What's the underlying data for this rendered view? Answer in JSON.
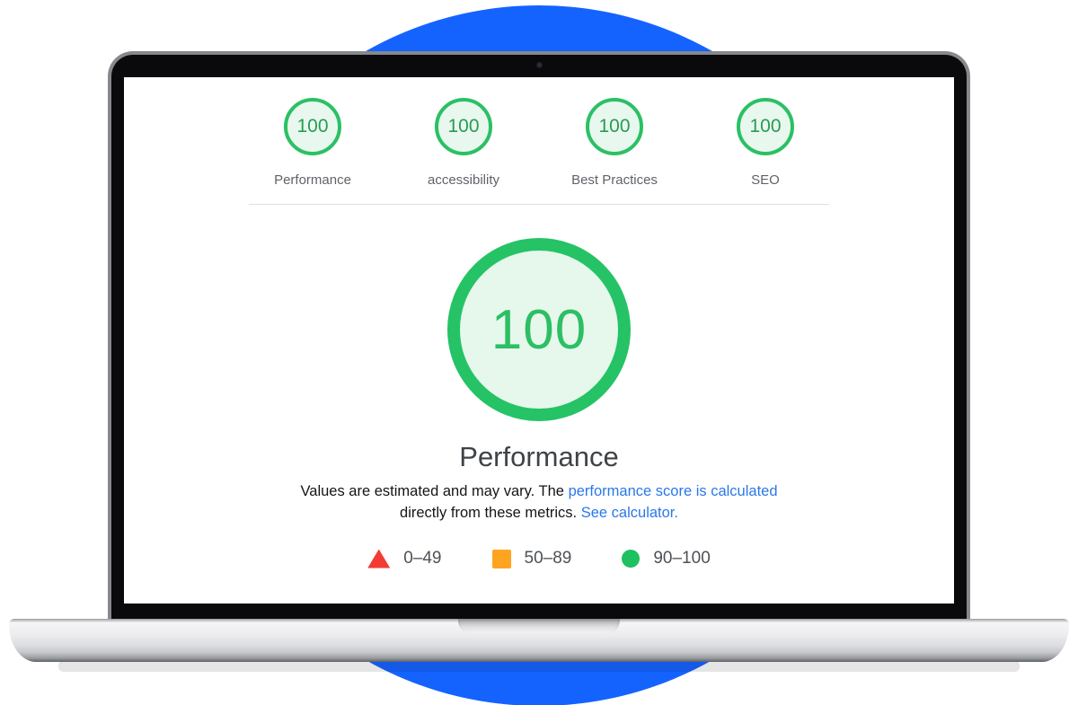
{
  "colors": {
    "background_circle_blue": "#1563ff",
    "score_ring_green": "#2bc065",
    "score_fill_light_green": "#e9f8ef",
    "score_text_green": "#279c52",
    "link_blue": "#2a78ea",
    "legend_fail_red": "#f23b35",
    "legend_average_orange": "#ffa421",
    "legend_pass_green": "#1fc05f"
  },
  "categories": [
    {
      "score": "100",
      "label": "Performance"
    },
    {
      "score": "100",
      "label": "accessibility"
    },
    {
      "score": "100",
      "label": "Best Practices"
    },
    {
      "score": "100",
      "label": "SEO"
    }
  ],
  "gauge": {
    "score": "100",
    "title": "Performance"
  },
  "description": {
    "text_1": "Values are estimated and may vary. The ",
    "link_1": "performance score is calculated",
    "text_2": " directly from these metrics. ",
    "link_2": "See calculator."
  },
  "legend": [
    {
      "range": "0–49",
      "shape": "triangle",
      "color": "#f23b35"
    },
    {
      "range": "50–89",
      "shape": "square",
      "color": "#ffa421"
    },
    {
      "range": "90–100",
      "shape": "circle",
      "color": "#1fc05f"
    }
  ]
}
